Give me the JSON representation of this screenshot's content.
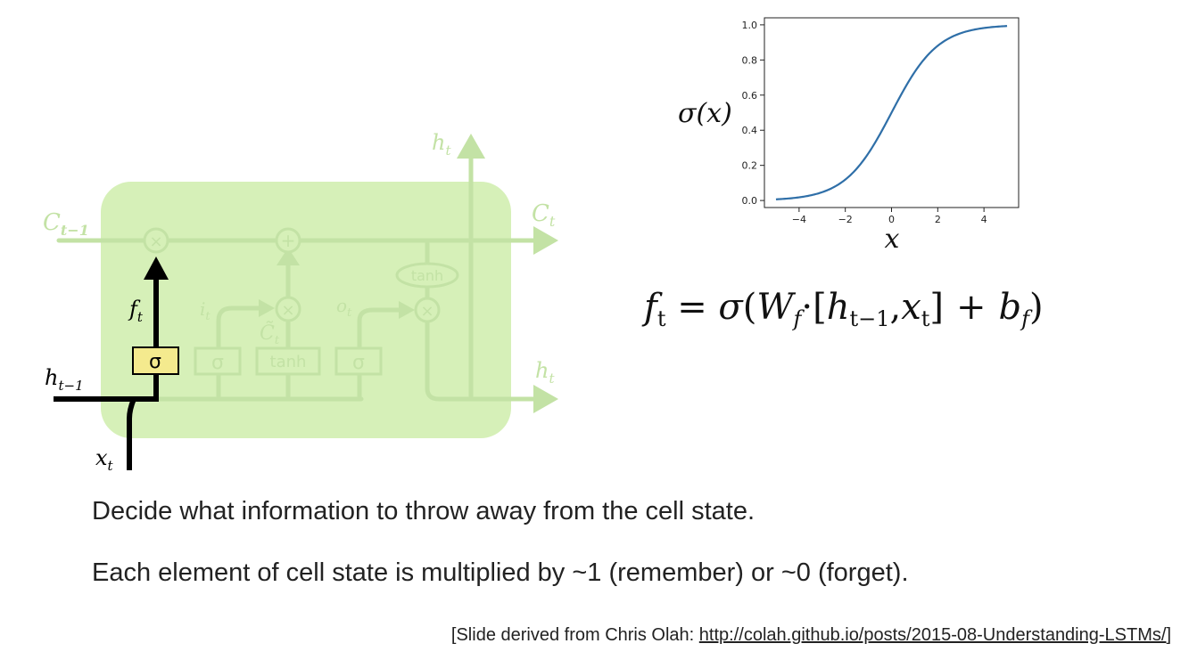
{
  "diagram": {
    "labels": {
      "c_prev": "C",
      "c_prev_sub": "t−1",
      "c_next": "C",
      "c_next_sub": "t",
      "h_top": "h",
      "h_top_sub": "t",
      "h_right": "h",
      "h_right_sub": "t",
      "h_prev": "h",
      "h_prev_sub": "t−1",
      "x_in": "x",
      "x_in_sub": "t",
      "f": "f",
      "f_sub": "t",
      "i": "i",
      "i_sub": "t",
      "o": "o",
      "o_sub": "t",
      "c_tilde": "C̃",
      "c_tilde_sub": "t"
    },
    "gates": {
      "sigma_forget": "σ",
      "sigma_input": "σ",
      "tanh_candidate": "tanh",
      "sigma_output": "σ",
      "tanh_output": "tanh",
      "op_forget_multiply": "×",
      "op_add": "+",
      "op_input_multiply": "×",
      "op_output_multiply": "×"
    },
    "colors": {
      "cell_fill": "#d6f0b8",
      "faded": "#c3e2a5",
      "highlight": "#000000",
      "gate_highlight": "#f4ea8e"
    }
  },
  "chart_data": {
    "type": "line",
    "function": "sigmoid",
    "series": [
      {
        "x": [
          -5,
          -4,
          -3,
          -2,
          -1,
          0,
          1,
          2,
          3,
          4,
          5
        ],
        "y": [
          0.0067,
          0.018,
          0.0474,
          0.1192,
          0.2689,
          0.5,
          0.7311,
          0.8808,
          0.9526,
          0.982,
          0.9933
        ]
      }
    ],
    "xlim": [
      -5.5,
      5.5
    ],
    "ylim": [
      -0.04,
      1.04
    ],
    "xticks": [
      -4,
      -2,
      0,
      2,
      4
    ],
    "yticks": [
      0.0,
      0.2,
      0.4,
      0.6,
      0.8,
      1.0
    ],
    "xtick_labels": [
      "−4",
      "−2",
      "0",
      "2",
      "4"
    ],
    "ytick_labels": [
      "0.0",
      "0.2",
      "0.4",
      "0.6",
      "0.8",
      "1.0"
    ],
    "xlabel": "x",
    "ylabel": "σ(x)",
    "grid": false,
    "line_color": "#2f6fa8"
  },
  "equation": {
    "f": "f",
    "f_sub": "t",
    "eq": "=",
    "sigma": "σ",
    "lparen": "(",
    "W": "W",
    "W_sub": "f",
    "dot": "·",
    "lbracket": "[",
    "h": "h",
    "h_sub": "t−1",
    "comma": ",",
    "x": "x",
    "x_sub": "t",
    "rbracket": "]",
    "plus": "+",
    "b": "b",
    "b_sub": "f",
    "rparen": ")"
  },
  "captions": {
    "line1": "Decide what information to throw away from the cell state.",
    "line2": "Each element of cell state is multiplied by ~1 (remember) or ~0 (forget)."
  },
  "credit": {
    "prefix": "[Slide derived from Chris Olah: ",
    "link": "http://colah.github.io/posts/2015-08-Understanding-LSTMs/",
    "suffix": "]"
  }
}
